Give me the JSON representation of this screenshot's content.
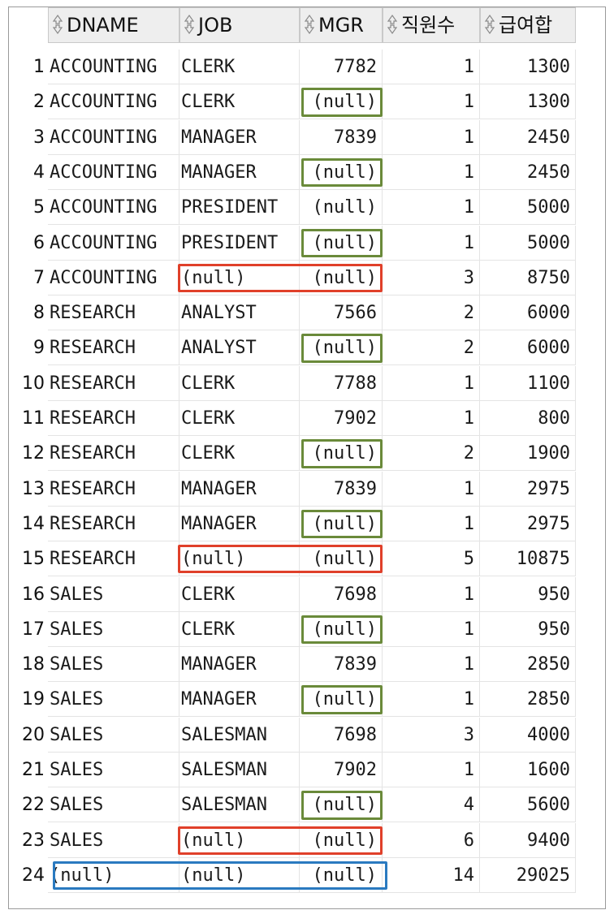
{
  "columns": [
    {
      "key": "rownum",
      "label": ""
    },
    {
      "key": "dname",
      "label": "DNAME"
    },
    {
      "key": "job",
      "label": "JOB"
    },
    {
      "key": "mgr",
      "label": "MGR"
    },
    {
      "key": "cnt",
      "label": "직원수"
    },
    {
      "key": "sal",
      "label": "급여합"
    }
  ],
  "rows": [
    {
      "n": "1",
      "dname": "ACCOUNTING",
      "job": "CLERK",
      "mgr": "7782",
      "cnt": "1",
      "sal": "1300",
      "hl": ""
    },
    {
      "n": "2",
      "dname": "ACCOUNTING",
      "job": "CLERK",
      "mgr": "(null)",
      "cnt": "1",
      "sal": "1300",
      "hl": "green"
    },
    {
      "n": "3",
      "dname": "ACCOUNTING",
      "job": "MANAGER",
      "mgr": "7839",
      "cnt": "1",
      "sal": "2450",
      "hl": ""
    },
    {
      "n": "4",
      "dname": "ACCOUNTING",
      "job": "MANAGER",
      "mgr": "(null)",
      "cnt": "1",
      "sal": "2450",
      "hl": "green"
    },
    {
      "n": "5",
      "dname": "ACCOUNTING",
      "job": "PRESIDENT",
      "mgr": "(null)",
      "cnt": "1",
      "sal": "5000",
      "hl": ""
    },
    {
      "n": "6",
      "dname": "ACCOUNTING",
      "job": "PRESIDENT",
      "mgr": "(null)",
      "cnt": "1",
      "sal": "5000",
      "hl": "green"
    },
    {
      "n": "7",
      "dname": "ACCOUNTING",
      "job": "(null)",
      "mgr": "(null)",
      "cnt": "3",
      "sal": "8750",
      "hl": "red"
    },
    {
      "n": "8",
      "dname": "RESEARCH",
      "job": "ANALYST",
      "mgr": "7566",
      "cnt": "2",
      "sal": "6000",
      "hl": ""
    },
    {
      "n": "9",
      "dname": "RESEARCH",
      "job": "ANALYST",
      "mgr": "(null)",
      "cnt": "2",
      "sal": "6000",
      "hl": "green"
    },
    {
      "n": "10",
      "dname": "RESEARCH",
      "job": "CLERK",
      "mgr": "7788",
      "cnt": "1",
      "sal": "1100",
      "hl": ""
    },
    {
      "n": "11",
      "dname": "RESEARCH",
      "job": "CLERK",
      "mgr": "7902",
      "cnt": "1",
      "sal": "800",
      "hl": ""
    },
    {
      "n": "12",
      "dname": "RESEARCH",
      "job": "CLERK",
      "mgr": "(null)",
      "cnt": "2",
      "sal": "1900",
      "hl": "green"
    },
    {
      "n": "13",
      "dname": "RESEARCH",
      "job": "MANAGER",
      "mgr": "7839",
      "cnt": "1",
      "sal": "2975",
      "hl": ""
    },
    {
      "n": "14",
      "dname": "RESEARCH",
      "job": "MANAGER",
      "mgr": "(null)",
      "cnt": "1",
      "sal": "2975",
      "hl": "green"
    },
    {
      "n": "15",
      "dname": "RESEARCH",
      "job": "(null)",
      "mgr": "(null)",
      "cnt": "5",
      "sal": "10875",
      "hl": "red"
    },
    {
      "n": "16",
      "dname": "SALES",
      "job": "CLERK",
      "mgr": "7698",
      "cnt": "1",
      "sal": "950",
      "hl": ""
    },
    {
      "n": "17",
      "dname": "SALES",
      "job": "CLERK",
      "mgr": "(null)",
      "cnt": "1",
      "sal": "950",
      "hl": "green"
    },
    {
      "n": "18",
      "dname": "SALES",
      "job": "MANAGER",
      "mgr": "7839",
      "cnt": "1",
      "sal": "2850",
      "hl": ""
    },
    {
      "n": "19",
      "dname": "SALES",
      "job": "MANAGER",
      "mgr": "(null)",
      "cnt": "1",
      "sal": "2850",
      "hl": "green"
    },
    {
      "n": "20",
      "dname": "SALES",
      "job": "SALESMAN",
      "mgr": "7698",
      "cnt": "3",
      "sal": "4000",
      "hl": ""
    },
    {
      "n": "21",
      "dname": "SALES",
      "job": "SALESMAN",
      "mgr": "7902",
      "cnt": "1",
      "sal": "1600",
      "hl": ""
    },
    {
      "n": "22",
      "dname": "SALES",
      "job": "SALESMAN",
      "mgr": "(null)",
      "cnt": "4",
      "sal": "5600",
      "hl": "green"
    },
    {
      "n": "23",
      "dname": "SALES",
      "job": "(null)",
      "mgr": "(null)",
      "cnt": "6",
      "sal": "9400",
      "hl": "red"
    },
    {
      "n": "24",
      "dname": "(null)",
      "job": "(null)",
      "mgr": "(null)",
      "cnt": "14",
      "sal": "29025",
      "hl": "blue"
    }
  ],
  "colors": {
    "green": "#6a8a3a",
    "red": "#e0402a",
    "blue": "#2a7ac0",
    "header_bg": "#eeeeee"
  },
  "icons": {
    "sort": "sort-arrows-icon"
  }
}
